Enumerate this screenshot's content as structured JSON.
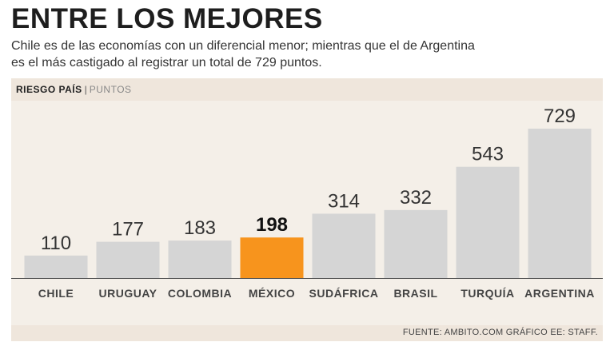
{
  "title": "ENTRE LOS MEJORES",
  "subtitle_line1": "Chile es de las economías con un diferencial menor; mientras que el de Argentina",
  "subtitle_line2": "es el más castigado al registrar un total de 729 puntos.",
  "header": {
    "label": "RIESGO PAÍS",
    "separator": "|",
    "unit": "PUNTOS"
  },
  "source": "FUENTE: AMBITO.COM GRÁFICO EE: STAFF.",
  "colors": {
    "bar": "#d5d5d5",
    "highlight": "#f7941d",
    "background": "#f4efe8",
    "band": "#efe6dc"
  },
  "chart_data": {
    "type": "bar",
    "title": "RIESGO PAÍS",
    "ylabel": "PUNTOS",
    "categories": [
      "CHILE",
      "URUGUAY",
      "COLOMBIA",
      "MÉXICO",
      "SUDÁFRICA",
      "BRASIL",
      "TURQUÍA",
      "ARGENTINA"
    ],
    "values": [
      110,
      177,
      183,
      198,
      314,
      332,
      543,
      729
    ],
    "value_labels": [
      "110",
      "177",
      "183",
      "198",
      "314",
      "332",
      "543",
      "729"
    ],
    "highlight_index": 3,
    "ylim": [
      0,
      780
    ]
  }
}
